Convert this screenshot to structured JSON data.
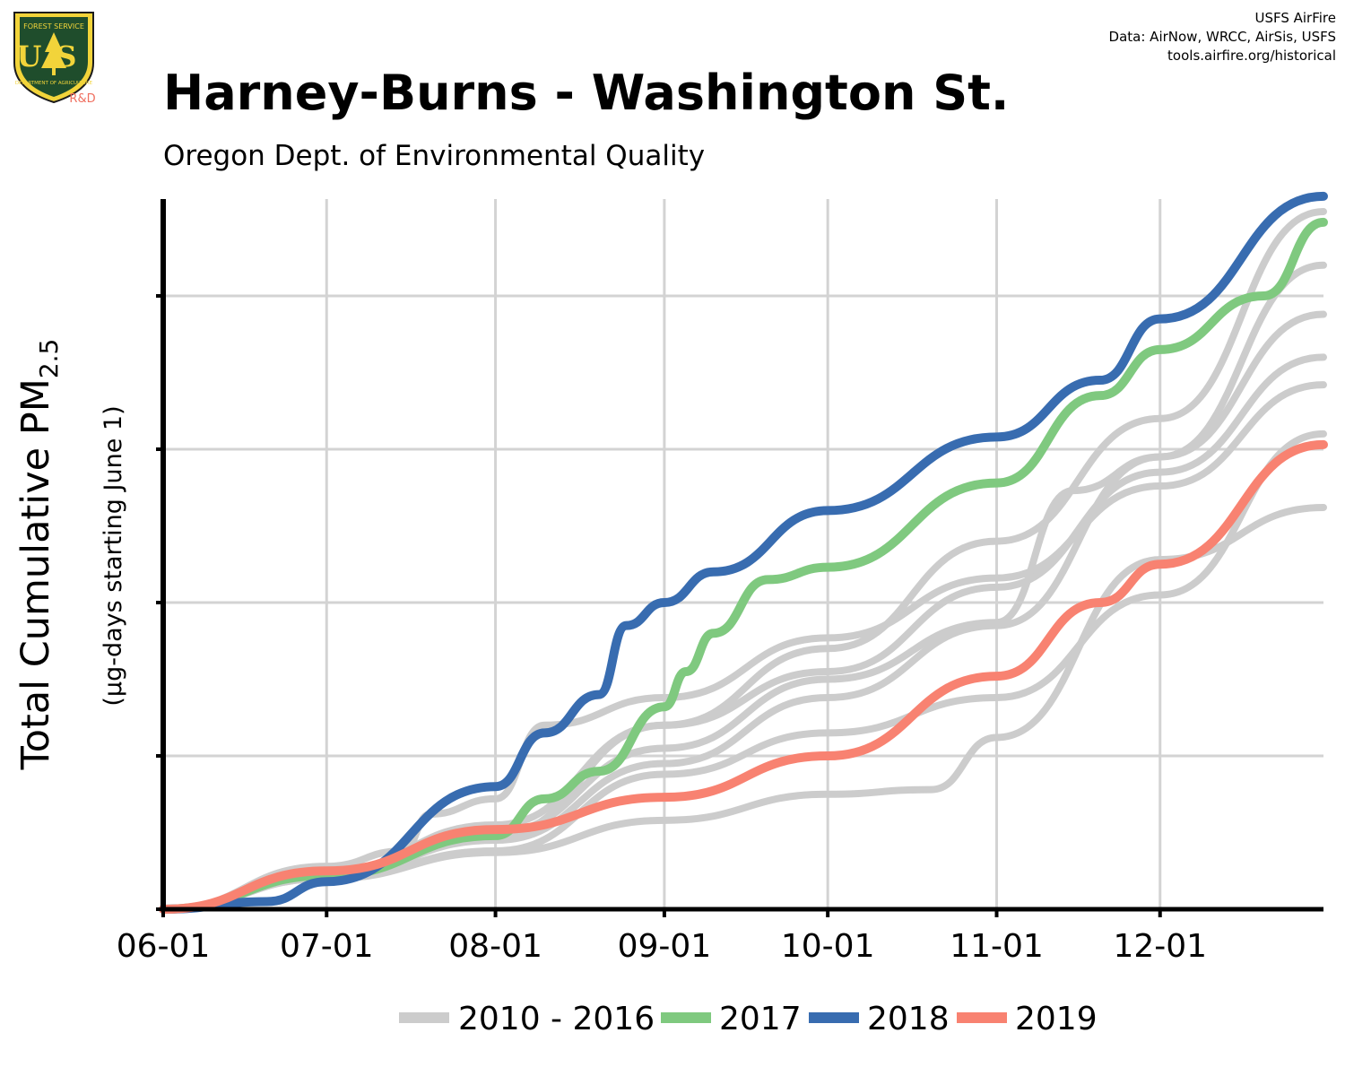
{
  "header": {
    "logo_top": "FOREST SERVICE",
    "logo_mark": "US",
    "logo_bottom": "DEPARTMENT OF AGRICULTURE",
    "logo_rd": "R&D",
    "credit_org": "USFS AirFire",
    "credit_data": "Data: AirNow, WRCC, AirSis, USFS",
    "credit_url": "tools.airfire.org/historical",
    "title": "Harney-Burns - Washington St.",
    "subtitle": "Oregon Dept. of Environmental Quality"
  },
  "colors": {
    "history": "#cccccc",
    "y2017": "#7fc97f",
    "y2018": "#386cb0",
    "y2019": "#f88271",
    "grid": "#d3d3d3",
    "axis": "#000000"
  },
  "chart_data": {
    "type": "line",
    "title": "Harney-Burns - Washington St.",
    "subtitle": "Oregon Dept. of Environmental Quality",
    "ylabel_main": "Total Cumulative PM",
    "ylabel_sub": "2.5",
    "ylabel_units": "(µg-days starting June 1)",
    "xlabel": "",
    "x_ticks": [
      "06-01",
      "07-01",
      "08-01",
      "09-01",
      "10-01",
      "11-01",
      "12-01"
    ],
    "xlim": [
      "06-01",
      "12-31"
    ],
    "ylim": [
      0,
      4.6
    ],
    "y_tick_values": [
      0,
      1,
      2,
      3,
      4
    ],
    "y_tick_labels_shown": false,
    "grid": true,
    "legend_position": "bottom",
    "legend": [
      "2010 - 2016",
      "2017",
      "2018",
      "2019"
    ],
    "series": [
      {
        "name": "2010 - 2016",
        "group": "history",
        "x": [
          "06-01",
          "07-01",
          "07-15",
          "07-20",
          "08-01",
          "08-10",
          "09-01",
          "10-01",
          "11-01",
          "12-01",
          "12-31"
        ],
        "y": [
          0,
          0.28,
          0.38,
          0.62,
          0.72,
          1.2,
          1.38,
          1.77,
          2.16,
          2.76,
          3.42
        ]
      },
      {
        "name": "2010 - 2016",
        "group": "history",
        "x": [
          "06-01",
          "07-01",
          "08-01",
          "09-01",
          "10-01",
          "10-20",
          "11-01",
          "12-01",
          "12-31"
        ],
        "y": [
          0,
          0.2,
          0.37,
          0.58,
          0.75,
          0.78,
          1.12,
          2.28,
          2.62
        ]
      },
      {
        "name": "2010 - 2016",
        "group": "history",
        "x": [
          "06-01",
          "07-01",
          "08-01",
          "09-01",
          "10-01",
          "11-01",
          "12-01",
          "12-31"
        ],
        "y": [
          0,
          0.22,
          0.45,
          0.95,
          1.38,
          1.85,
          2.95,
          3.88
        ]
      },
      {
        "name": "2010 - 2016",
        "group": "history",
        "x": [
          "06-01",
          "07-01",
          "08-01",
          "09-01",
          "10-01",
          "11-01",
          "11-15",
          "12-01",
          "12-31"
        ],
        "y": [
          0,
          0.24,
          0.5,
          1.05,
          1.5,
          1.87,
          2.73,
          2.95,
          4.2
        ]
      },
      {
        "name": "2010 - 2016",
        "group": "history",
        "x": [
          "06-01",
          "07-01",
          "08-01",
          "09-01",
          "10-01",
          "11-01",
          "12-01",
          "12-31"
        ],
        "y": [
          0,
          0.25,
          0.48,
          1.2,
          1.55,
          2.1,
          2.85,
          3.6
        ]
      },
      {
        "name": "2010 - 2016",
        "group": "history",
        "x": [
          "06-01",
          "07-01",
          "08-01",
          "09-01",
          "10-01",
          "11-01",
          "12-01",
          "12-31"
        ],
        "y": [
          0,
          0.2,
          0.38,
          0.88,
          1.15,
          1.38,
          2.05,
          3.1
        ]
      },
      {
        "name": "2010 - 2016",
        "group": "history",
        "x": [
          "06-01",
          "07-01",
          "08-01",
          "09-01",
          "10-01",
          "11-01",
          "12-01",
          "12-31"
        ],
        "y": [
          0,
          0.25,
          0.55,
          1.2,
          1.7,
          2.4,
          3.2,
          4.55
        ]
      },
      {
        "name": "2017",
        "x": [
          "06-01",
          "07-01",
          "08-01",
          "08-10",
          "08-20",
          "09-01",
          "09-05",
          "09-10",
          "09-20",
          "10-01",
          "11-01",
          "11-20",
          "12-01",
          "12-20",
          "12-31"
        ],
        "y": [
          0,
          0.22,
          0.48,
          0.72,
          0.9,
          1.32,
          1.55,
          1.8,
          2.15,
          2.23,
          2.78,
          3.35,
          3.65,
          4.0,
          4.48
        ]
      },
      {
        "name": "2018",
        "x": [
          "06-01",
          "06-20",
          "07-01",
          "08-01",
          "08-10",
          "08-20",
          "08-25",
          "09-01",
          "09-10",
          "10-01",
          "11-01",
          "11-20",
          "12-01",
          "12-31"
        ],
        "y": [
          0,
          0.05,
          0.18,
          0.8,
          1.15,
          1.4,
          1.85,
          2.0,
          2.2,
          2.6,
          3.08,
          3.45,
          3.85,
          4.65
        ]
      },
      {
        "name": "2019",
        "x": [
          "06-01",
          "07-01",
          "08-01",
          "09-01",
          "10-01",
          "11-01",
          "11-20",
          "12-01",
          "12-31"
        ],
        "y": [
          0,
          0.25,
          0.52,
          0.73,
          1.0,
          1.52,
          2.0,
          2.25,
          3.03
        ]
      }
    ]
  }
}
